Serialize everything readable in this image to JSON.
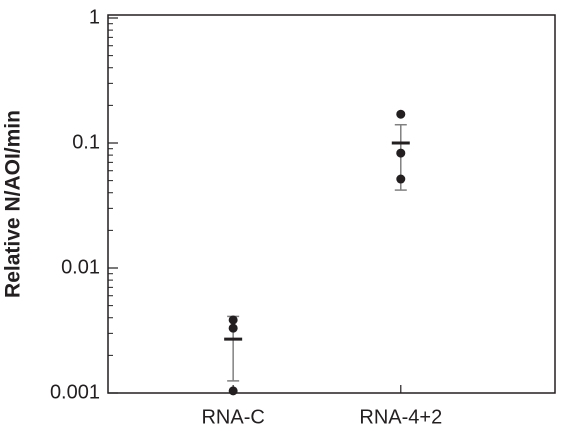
{
  "chart_data": {
    "type": "dot",
    "y_label": "Relative N/AOI/min",
    "log_scale": true,
    "categories": [
      "RNA-C",
      "RNA-4+2"
    ],
    "values": [
      [
        0.00384,
        0.0033,
        0.00104
      ],
      [
        0.17,
        0.083,
        0.0515
      ]
    ],
    "means": [
      0.0027,
      0.1
    ],
    "error_low": [
      0.00125,
      0.042
    ],
    "error_high": [
      0.0041,
      0.14
    ],
    "color": "#231f20",
    "error_color": "#808080",
    "ylim": [
      0.001,
      1
    ],
    "yticks": [
      0.001,
      0.01,
      0.1,
      1
    ],
    "minor_ticks": true
  }
}
